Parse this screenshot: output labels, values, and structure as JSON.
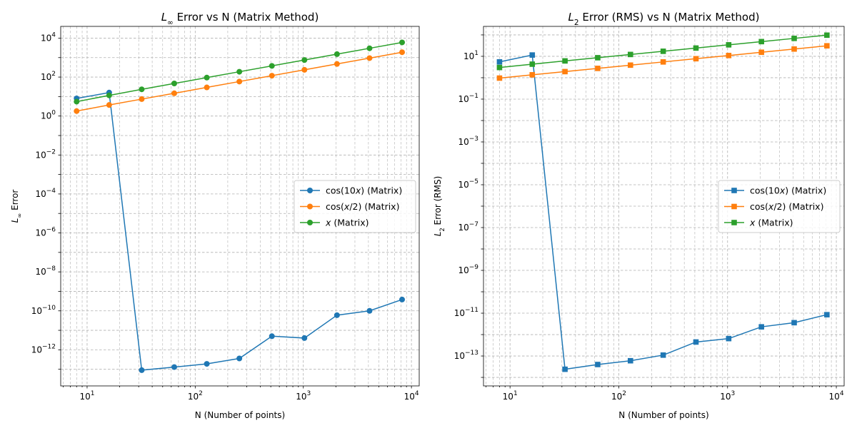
{
  "chart_data": [
    {
      "type": "line",
      "title_parts": [
        "L",
        "∞",
        " Error vs N (Matrix Method)"
      ],
      "xlabel": "N (Number of points)",
      "ylabel_parts": [
        "L",
        "∞",
        " Error"
      ],
      "xscale": "log",
      "yscale": "log",
      "xlim": [
        5.7,
        11800
      ],
      "ylim": [
        1.4e-14,
        40000.0
      ],
      "x_ticks": [
        1,
        2,
        3,
        4
      ],
      "y_ticks": [
        -12,
        -10,
        -8,
        -6,
        -4,
        -2,
        0,
        2,
        4
      ],
      "grid": true,
      "legend_position": "center-right",
      "marker": "circle",
      "x": [
        8,
        16,
        32,
        64,
        128,
        256,
        512,
        1024,
        2048,
        4096,
        8192
      ],
      "series": [
        {
          "name_parts": [
            "cos(10",
            "x",
            ") (Matrix)"
          ],
          "color": "#1f77b4",
          "values": [
            8,
            16,
            9e-14,
            1.3e-13,
            1.9e-13,
            3.6e-13,
            5e-12,
            4e-12,
            6e-11,
            1e-10,
            3.8e-10
          ]
        },
        {
          "name_parts": [
            "cos(",
            "x",
            "/2) (Matrix)"
          ],
          "color": "#ff7f0e",
          "values": [
            1.8,
            3.7,
            7.4,
            14.7,
            29.5,
            59,
            118,
            236,
            472,
            943,
            1886
          ]
        },
        {
          "name_parts": [
            "",
            "x",
            " (Matrix)"
          ],
          "color": "#2ca02c",
          "values": [
            5.5,
            11.5,
            23.5,
            47,
            94,
            188,
            376,
            752,
            1504,
            3008,
            6016
          ]
        }
      ]
    },
    {
      "type": "line",
      "title_parts": [
        "L",
        "2",
        " Error (RMS) vs N (Matrix Method)"
      ],
      "xlabel": "N (Number of points)",
      "ylabel_parts": [
        "L",
        "2",
        " Error (RMS)"
      ],
      "xscale": "log",
      "yscale": "log",
      "xlim": [
        5.7,
        11800
      ],
      "ylim": [
        4e-15,
        250
      ],
      "x_ticks": [
        1,
        2,
        3,
        4
      ],
      "y_ticks": [
        -13,
        -11,
        -9,
        -7,
        -5,
        -3,
        -1,
        1
      ],
      "grid": true,
      "legend_position": "center-right",
      "marker": "square",
      "x": [
        8,
        16,
        32,
        64,
        128,
        256,
        512,
        1024,
        2048,
        4096,
        8192
      ],
      "series": [
        {
          "name_parts": [
            "cos(10",
            "x",
            ") (Matrix)"
          ],
          "color": "#1f77b4",
          "values": [
            5.5,
            11.5,
            2.4e-14,
            4e-14,
            6e-14,
            1.1e-13,
            4.5e-13,
            6.5e-13,
            2.3e-12,
            3.6e-12,
            8.5e-12
          ]
        },
        {
          "name_parts": [
            "cos(",
            "x",
            "/2) (Matrix)"
          ],
          "color": "#ff7f0e",
          "values": [
            0.96,
            1.37,
            1.93,
            2.73,
            3.87,
            5.47,
            7.73,
            10.9,
            15.5,
            21.9,
            31
          ]
        },
        {
          "name_parts": [
            "",
            "x",
            " (Matrix)"
          ],
          "color": "#2ca02c",
          "values": [
            3,
            4.3,
            6.1,
            8.6,
            12.2,
            17.2,
            24.3,
            34.4,
            48.7,
            68.8,
            97.3
          ]
        }
      ]
    }
  ]
}
